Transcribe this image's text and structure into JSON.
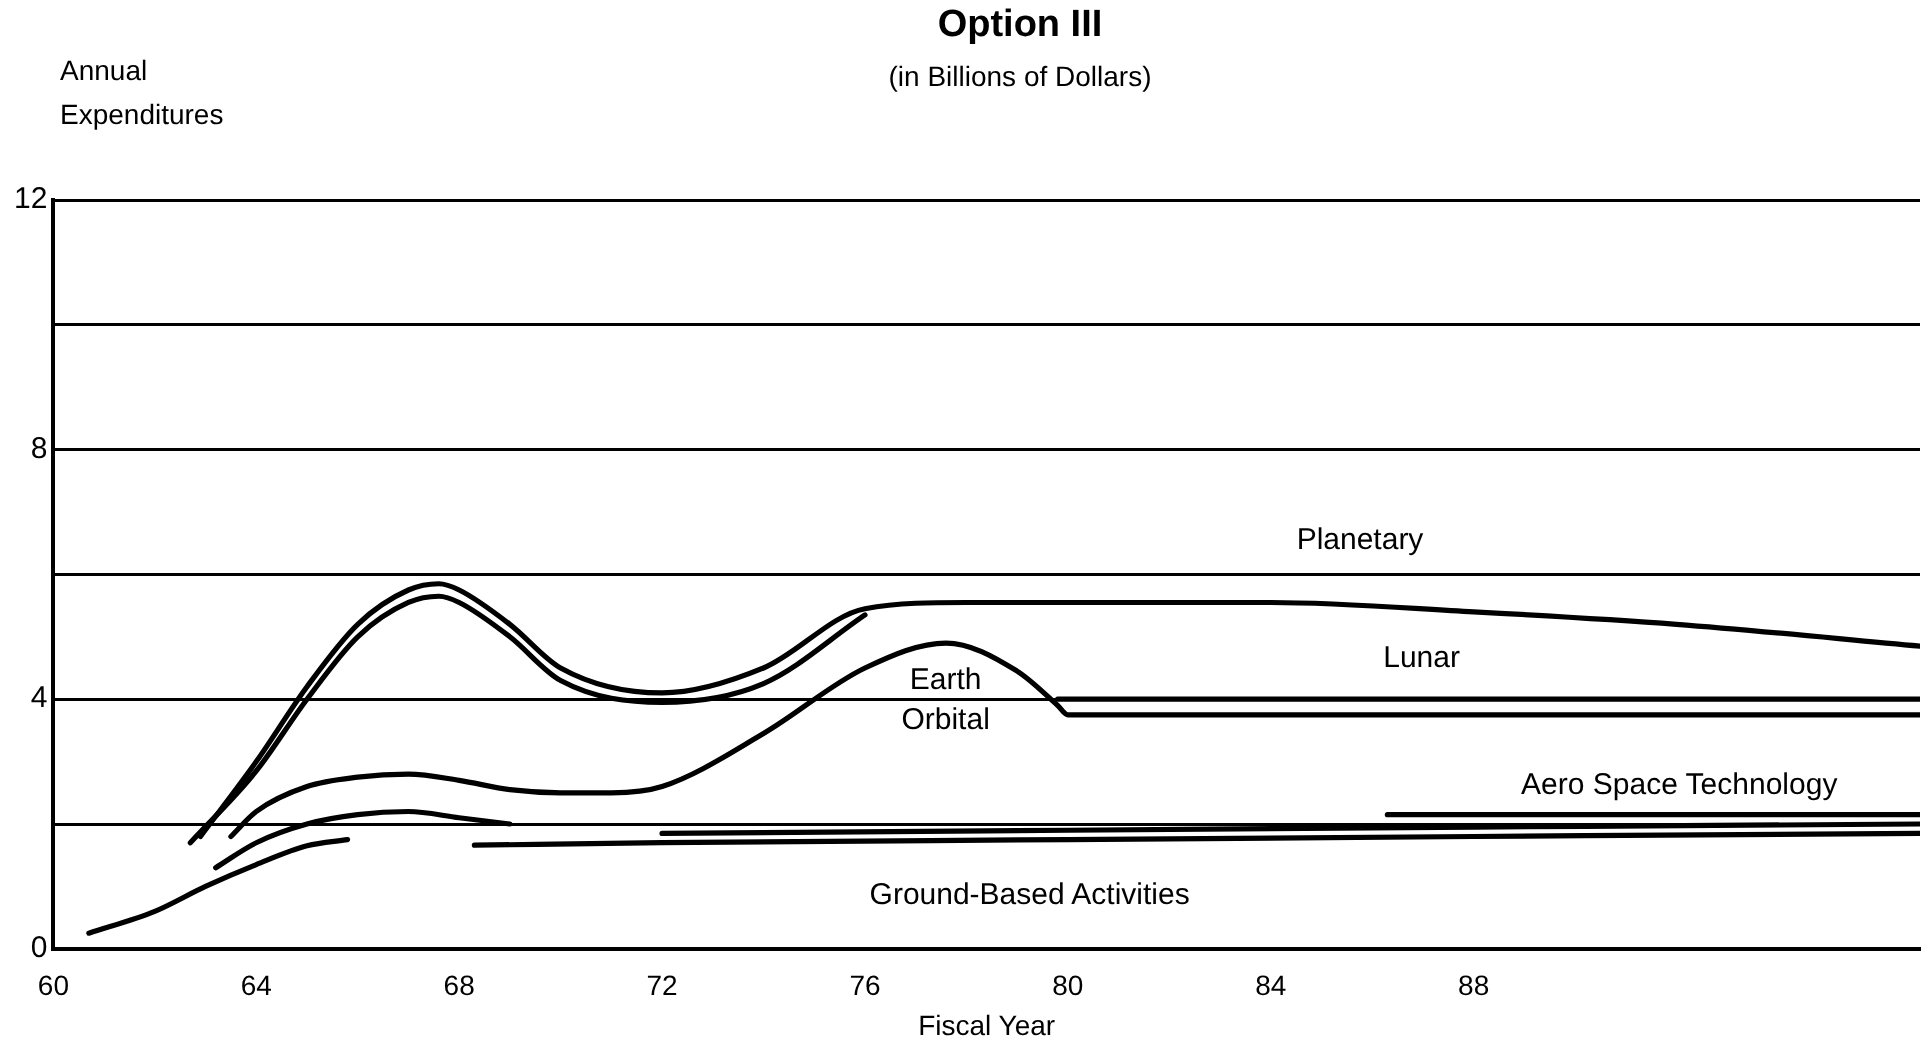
{
  "chart_data": {
    "type": "line",
    "title": "Option III",
    "subtitle": "(in Billions of Dollars)",
    "ylabel": "Annual Expenditures",
    "xlabel": "Fiscal Year",
    "xlim": [
      60,
      96.8
    ],
    "xticks": [
      60,
      64,
      68,
      72,
      76,
      80,
      84,
      88
    ],
    "ylim": [
      0,
      12
    ],
    "yticks": [
      0,
      {
        "value": 2,
        "label": null
      },
      4,
      {
        "value": 6,
        "label": null
      },
      8,
      {
        "value": 10,
        "label": null
      },
      12
    ],
    "grid": "y",
    "legend": false,
    "marker": "none",
    "line_style": "solid",
    "series": [
      {
        "color": "#000000",
        "x": [
          62.9,
          64,
          65,
          66,
          67,
          67.6,
          68,
          69,
          70,
          72,
          74,
          76,
          78,
          80,
          84,
          88,
          92,
          96.8
        ],
        "values": [
          1.8,
          3.0,
          4.2,
          5.2,
          5.75,
          5.85,
          5.75,
          5.2,
          4.5,
          4.1,
          4.5,
          5.45,
          5.55,
          5.55,
          5.55,
          5.4,
          5.2,
          4.85
        ]
      },
      {
        "color": "#000000",
        "x": [
          62.7,
          64,
          65,
          66,
          67,
          67.6,
          68,
          69,
          70,
          72,
          74,
          76
        ],
        "values": [
          1.7,
          2.85,
          4.0,
          5.0,
          5.55,
          5.65,
          5.55,
          5.0,
          4.3,
          3.95,
          4.25,
          5.35
        ]
      },
      {
        "color": "#000000",
        "x": [
          63.5,
          64,
          65,
          66,
          67,
          68,
          69,
          70,
          71,
          72,
          74,
          76,
          77.6,
          79,
          79.8,
          80,
          84,
          88,
          92,
          96.8
        ],
        "values": [
          1.8,
          2.2,
          2.6,
          2.75,
          2.8,
          2.7,
          2.55,
          2.5,
          2.5,
          2.6,
          3.45,
          4.5,
          4.9,
          4.45,
          3.9,
          3.75,
          3.75,
          3.75,
          3.75,
          3.75
        ]
      },
      {
        "color": "#000000",
        "x": [
          79.8,
          84,
          88,
          92,
          96.8
        ],
        "values": [
          4.0,
          4.0,
          4.0,
          4.0,
          4.0
        ]
      },
      {
        "color": "#000000",
        "x": [
          63.2,
          64,
          65,
          66,
          67,
          68,
          69
        ],
        "values": [
          1.3,
          1.7,
          2.0,
          2.15,
          2.2,
          2.1,
          2.0
        ]
      },
      {
        "color": "#000000",
        "x": [
          86.3,
          90,
          96.8
        ],
        "values": [
          2.15,
          2.15,
          2.15
        ]
      },
      {
        "color": "#000000",
        "x": [
          60.7,
          62,
          63,
          64,
          65,
          65.8
        ],
        "values": [
          0.25,
          0.6,
          1.0,
          1.35,
          1.65,
          1.75
        ]
      },
      {
        "color": "#000000",
        "x": [
          68.3,
          72,
          80,
          88,
          96.8
        ],
        "values": [
          1.66,
          1.7,
          1.75,
          1.8,
          1.85
        ]
      },
      {
        "color": "#000000",
        "x": [
          72,
          80,
          88,
          96.8
        ],
        "values": [
          1.85,
          1.9,
          1.95,
          2.0
        ]
      }
    ],
    "annotations": [
      "Planetary",
      "Lunar",
      "Earth Orbital",
      "Aero Space Technology",
      "Ground-Based Activities"
    ]
  }
}
